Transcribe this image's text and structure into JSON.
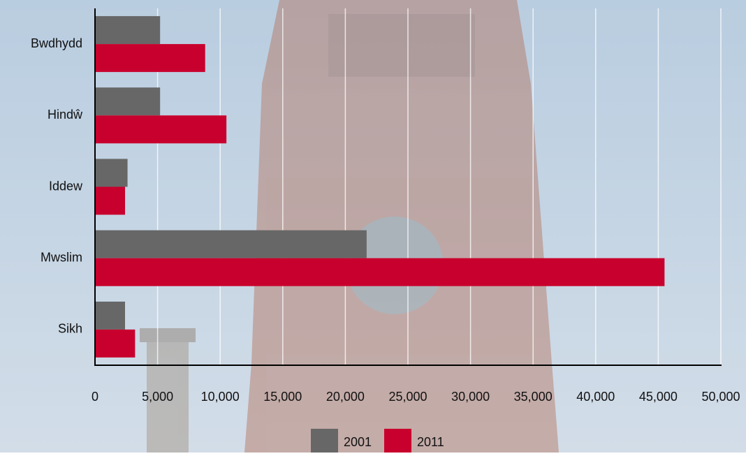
{
  "chart_data": {
    "type": "barh",
    "categories": [
      "Bwdhydd",
      "Hindŵ",
      "Iddew",
      "Mwslim",
      "Sikh"
    ],
    "series": [
      {
        "name": "2001",
        "color": "#676767",
        "values": [
          5200,
          5200,
          2600,
          21700,
          2400
        ]
      },
      {
        "name": "2011",
        "color": "#c8002d",
        "values": [
          8800,
          10500,
          2400,
          45500,
          3200
        ]
      }
    ],
    "xlim": [
      0,
      50000
    ],
    "xticks": [
      0,
      {
        "value": 5000,
        "label": "5,000"
      },
      {
        "value": 10000,
        "label": "10,000"
      },
      {
        "value": 15000,
        "label": "15,000"
      },
      {
        "value": 20000,
        "label": "20,000"
      },
      {
        "value": 25000,
        "label": "25,000"
      },
      {
        "value": 30000,
        "label": "30,000"
      },
      {
        "value": 35000,
        "label": "35,000"
      },
      {
        "value": 40000,
        "label": "40,000"
      },
      {
        "value": 45000,
        "label": "45,000"
      },
      {
        "value": 50000,
        "label": "50,000"
      }
    ],
    "grid": true,
    "legend": "bottom"
  }
}
